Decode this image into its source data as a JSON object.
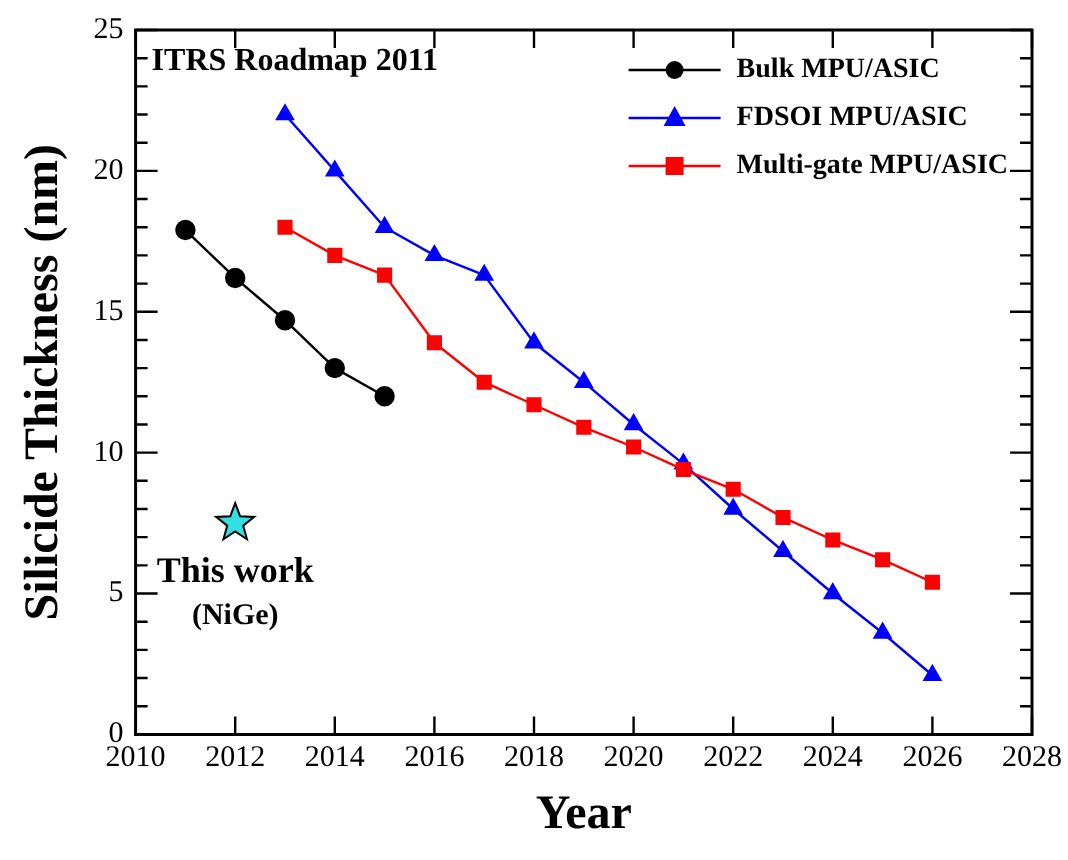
{
  "chart_data": {
    "type": "line",
    "xlabel": "Year",
    "ylabel": "Silicide Thickness (nm)",
    "xlim": [
      2010,
      2028
    ],
    "xticks": [
      2010,
      2012,
      2014,
      2016,
      2018,
      2020,
      2022,
      2024,
      2026,
      2028
    ],
    "ylim": [
      0,
      25
    ],
    "yticks": [
      0,
      {
        "value": 1,
        "label": null
      },
      {
        "value": 2,
        "label": null
      },
      {
        "value": 3,
        "label": null
      },
      {
        "value": 4,
        "label": null
      },
      5,
      {
        "value": 6,
        "label": null
      },
      {
        "value": 7,
        "label": null
      },
      {
        "value": 8,
        "label": null
      },
      {
        "value": 9,
        "label": null
      },
      10,
      {
        "value": 11,
        "label": null
      },
      {
        "value": 12,
        "label": null
      },
      {
        "value": 13,
        "label": null
      },
      {
        "value": 14,
        "label": null
      },
      15,
      {
        "value": 16,
        "label": null
      },
      {
        "value": 17,
        "label": null
      },
      {
        "value": 18,
        "label": null
      },
      {
        "value": 19,
        "label": null
      },
      20,
      {
        "value": 21,
        "label": null
      },
      {
        "value": 22,
        "label": null
      },
      {
        "value": 23,
        "label": null
      },
      {
        "value": 24,
        "label": null
      },
      25
    ],
    "grid": false,
    "legend": "top right",
    "line_style": "solid",
    "series": [
      {
        "name": "Bulk MPU/ASIC",
        "color": "#000000",
        "marker": "circle",
        "x": [
          2011,
          2012,
          2013,
          2014,
          2015
        ],
        "values": [
          17.9,
          16.2,
          14.7,
          13.0,
          12.0
        ]
      },
      {
        "name": "FDSOI MPU/ASIC",
        "color": "#0000ff",
        "marker": "triangle",
        "x": [
          2013,
          2014,
          2015,
          2016,
          2017,
          2018,
          2019,
          2020,
          2021,
          2022,
          2023,
          2024,
          2025,
          2026
        ],
        "values": [
          22.0,
          20.0,
          18.0,
          17.0,
          16.3,
          13.9,
          12.5,
          11.0,
          9.6,
          8.0,
          6.5,
          5.0,
          3.6,
          2.1
        ]
      },
      {
        "name": "Multi-gate MPU/ASIC",
        "color": "#ff0000",
        "marker": "square",
        "x": [
          2013,
          2014,
          2015,
          2016,
          2017,
          2018,
          2019,
          2020,
          2021,
          2022,
          2023,
          2024,
          2025,
          2026
        ],
        "values": [
          18.0,
          17.0,
          16.3,
          13.9,
          12.5,
          11.7,
          10.9,
          10.2,
          9.4,
          8.7,
          7.7,
          6.9,
          6.2,
          5.4
        ]
      },
      {
        "type": "scatter",
        "color": "#33e0e0",
        "marker": "star",
        "x": [
          2012
        ],
        "values": [
          7.5
        ]
      }
    ],
    "annotations": [
      "ITRS Roadmap 2011",
      {
        "text": "This work",
        "x": 2012,
        "y": 7.5
      },
      {
        "text": "(NiGe)",
        "x": 2012,
        "y": 7.5
      }
    ]
  }
}
